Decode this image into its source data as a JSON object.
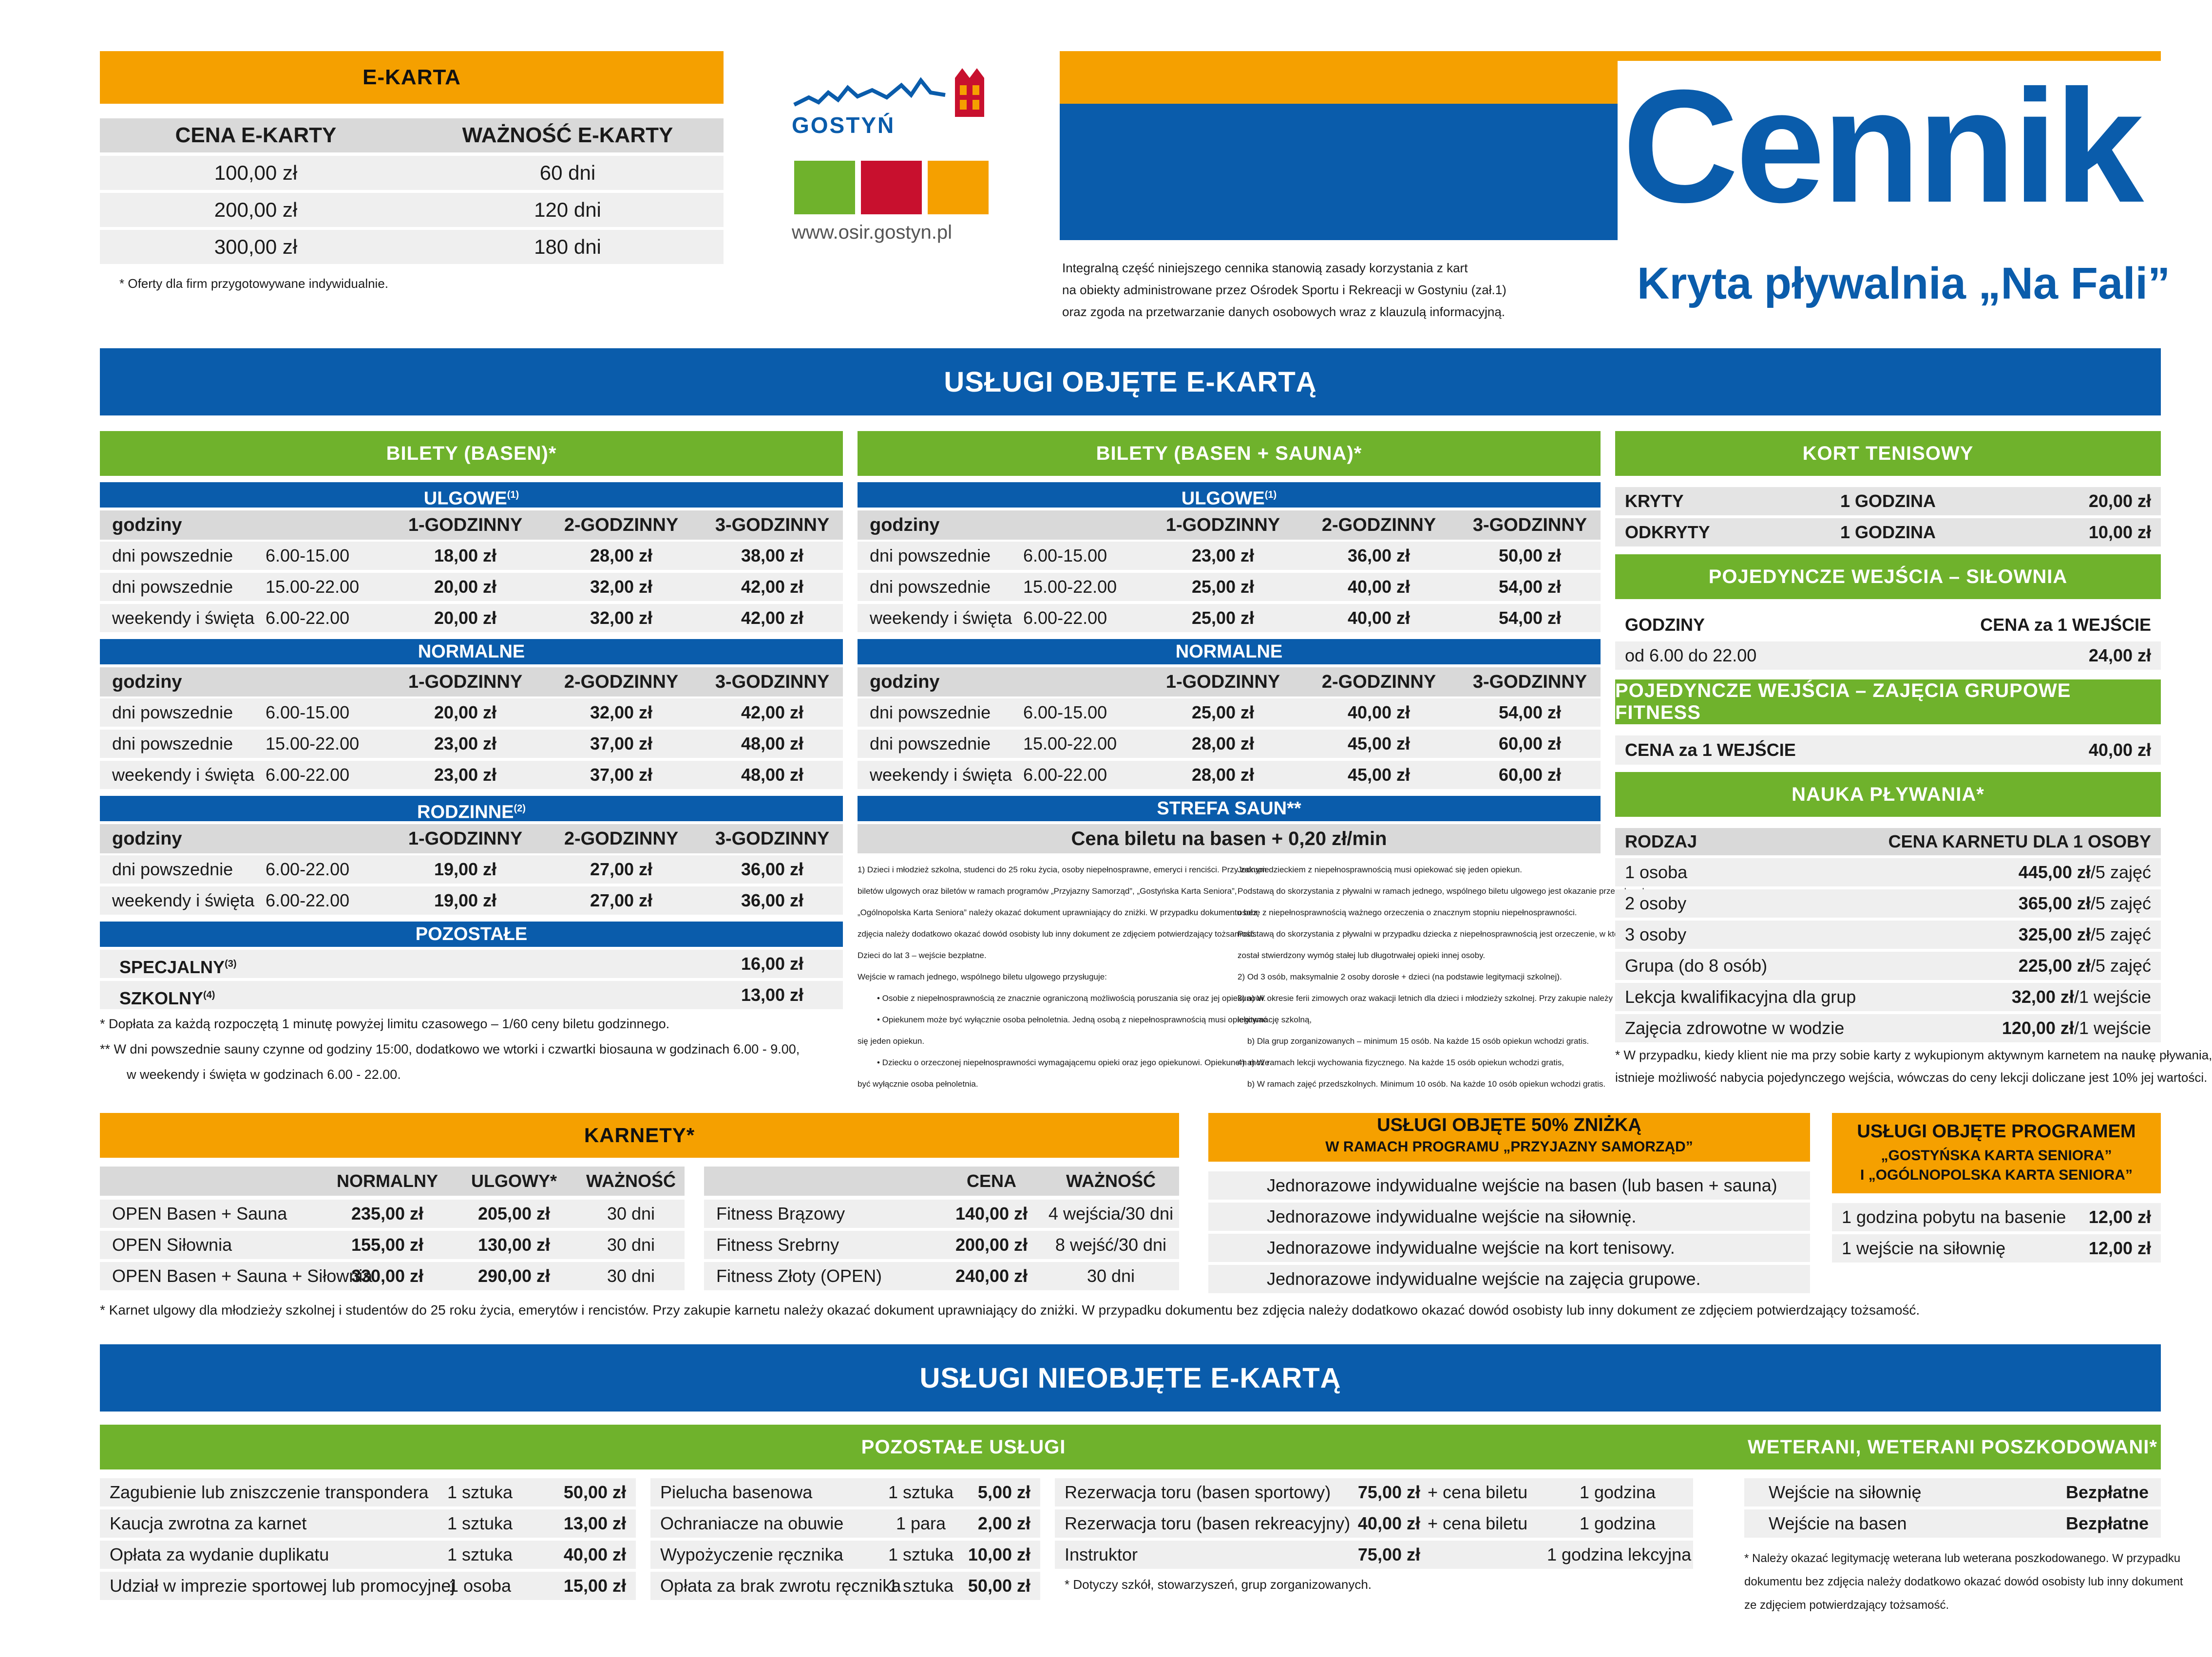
{
  "ekarta": {
    "title": "E-KARTA",
    "col1": "CENA E-KARTY",
    "col2": "WAŻNOŚĆ E-KARTY",
    "rows": [
      [
        "100,00 zł",
        "60 dni"
      ],
      [
        "200,00 zł",
        "120 dni"
      ],
      [
        "300,00 zł",
        "180 dni"
      ]
    ],
    "note": "* Oferty dla firm przygotowywane indywidualnie."
  },
  "logo": {
    "name": "GOSTYŃ",
    "url": "www.osir.gostyn.pl"
  },
  "title": {
    "main": "Cennik",
    "sub": "Kryta pływalnia „Na Fali”",
    "intro1": "Integralną część niniejszego cennika stanowią zasady korzystania z kart",
    "intro2": "na obiekty administrowane przez Ośrodek Sportu i Rekreacji w Gostyniu (zał.1)",
    "intro3": "oraz zgoda na przetwarzanie danych osobowych wraz z klauzulą informacyjną."
  },
  "sec1": "USŁUGI OBJĘTE E-KARTĄ",
  "sec2": "USŁUGI NIEOBJĘTE E-KARTĄ",
  "basen": {
    "title": "BILETY (BASEN)*",
    "ulgowe": {
      "label": "ULGOWE",
      "sup": "(1)",
      "rows": [
        [
          "dni powszednie",
          "6.00-15.00",
          "18,00 zł",
          "28,00 zł",
          "38,00 zł"
        ],
        [
          "dni powszednie",
          "15.00-22.00",
          "20,00 zł",
          "32,00 zł",
          "42,00 zł"
        ],
        [
          "weekendy i święta",
          "6.00-22.00",
          "20,00 zł",
          "32,00 zł",
          "42,00 zł"
        ]
      ]
    },
    "normalne": {
      "label": "NORMALNE",
      "rows": [
        [
          "dni powszednie",
          "6.00-15.00",
          "20,00 zł",
          "32,00 zł",
          "42,00 zł"
        ],
        [
          "dni powszednie",
          "15.00-22.00",
          "23,00 zł",
          "37,00 zł",
          "48,00 zł"
        ],
        [
          "weekendy i święta",
          "6.00-22.00",
          "23,00 zł",
          "37,00 zł",
          "48,00 zł"
        ]
      ]
    },
    "rodzinne": {
      "label": "RODZINNE",
      "sup": "(2)",
      "rows": [
        [
          "dni powszednie",
          "6.00-22.00",
          "19,00 zł",
          "27,00 zł",
          "36,00 zł"
        ],
        [
          "weekendy i święta",
          "6.00-22.00",
          "19,00 zł",
          "27,00 zł",
          "36,00 zł"
        ]
      ]
    },
    "pozostale": {
      "label": "POZOSTAŁE",
      "rows": [
        [
          "SPECJALNY",
          "(3)",
          "16,00 zł"
        ],
        [
          "SZKOLNY",
          "(4)",
          "13,00 zł"
        ]
      ]
    },
    "notes": [
      "* Dopłata za każdą rozpoczętą 1 minutę powyżej limitu czasowego – 1/60 ceny biletu godzinnego.",
      "** W dni powszednie sauny czynne od godziny 15:00, dodatkowo we wtorki i czwartki biosauna w godzinach 6.00 - 9.00,",
      "w weekendy i święta w godzinach 6.00 - 22.00."
    ]
  },
  "cols": {
    "godziny": "godziny",
    "h1": "1-GODZINNY",
    "h2": "2-GODZINNY",
    "h3": "3-GODZINNY"
  },
  "sauna": {
    "title": "BILETY (BASEN + SAUNA)*",
    "ulgowe": {
      "label": "ULGOWE",
      "sup": "(1)",
      "rows": [
        [
          "dni powszednie",
          "6.00-15.00",
          "23,00 zł",
          "36,00 zł",
          "50,00 zł"
        ],
        [
          "dni powszednie",
          "15.00-22.00",
          "25,00 zł",
          "40,00 zł",
          "54,00 zł"
        ],
        [
          "weekendy i święta",
          "6.00-22.00",
          "25,00 zł",
          "40,00 zł",
          "54,00 zł"
        ]
      ]
    },
    "normalne": {
      "label": "NORMALNE",
      "rows": [
        [
          "dni powszednie",
          "6.00-15.00",
          "25,00 zł",
          "40,00 zł",
          "54,00 zł"
        ],
        [
          "dni powszednie",
          "15.00-22.00",
          "28,00 zł",
          "45,00 zł",
          "60,00 zł"
        ],
        [
          "weekendy i święta",
          "6.00-22.00",
          "28,00 zł",
          "45,00 zł",
          "60,00 zł"
        ]
      ]
    },
    "strefa": "STREFA SAUN**",
    "strefa_price": "Cena biletu na basen + 0,20 zł/min",
    "fn_left": [
      "1) Dzieci i młodzież szkolna, studenci do 25 roku życia, osoby niepełnosprawne, emeryci i renciści. Przy zakupie",
      "biletów ulgowych oraz biletów w ramach programów „Przyjazny Samorząd”, „Gostyńska Karta Seniora”,",
      "„Ogólnopolska Karta Seniora” należy okazać dokument uprawniający do zniżki. W przypadku dokumentu bez",
      "zdjęcia należy dodatkowo okazać dowód osobisty lub inny dokument ze zdjęciem potwierdzający tożsamość.",
      "Dzieci do lat 3 – wejście bezpłatne.",
      "Wejście w ramach jednego, wspólnego biletu ulgowego przysługuje:",
      "• Osobie z niepełnosprawnością ze znacznie ograniczoną możliwością poruszania się oraz jej opiekunowi.",
      "• Opiekunem może być wyłącznie osoba pełnoletnia. Jedną osobą z niepełnosprawnością musi opiekować",
      "się jeden opiekun.",
      "• Dziecku o orzeczonej niepełnosprawności wymagającemu opieki oraz jego opiekunowi. Opiekunem może",
      "być wyłącznie osoba pełnoletnia."
    ],
    "fn_right": [
      "Jednym dzieckiem z niepełnosprawnością musi opiekować się jeden opiekun.",
      "Podstawą do skorzystania z pływalni w ramach jednego, wspólnego biletu ulgowego jest okazanie przez dorosłą",
      "osobę z niepełnosprawnością ważnego orzeczenia o znacznym stopniu niepełnosprawności.",
      "Podstawą do skorzystania z pływalni w przypadku dziecka z niepełnosprawnością jest orzeczenie, w którym",
      "został stwierdzony wymóg stałej lub długotrwałej opieki innej osoby.",
      "2) Od 3 osób, maksymalnie 2 osoby dorosłe + dzieci (na podstawie legitymacji szkolnej).",
      "3) a) W okresie ferii zimowych oraz wakacji letnich dla dzieci i młodzieży szkolnej. Przy zakupie należy okazać",
      "legitymację szkolną,",
      "b) Dla grup zorganizowanych – minimum 15 osób. Na każde 15 osób opiekun wchodzi gratis.",
      "4) a) W ramach lekcji wychowania fizycznego. Na każde 15 osób opiekun wchodzi gratis,",
      "b) W ramach zajęć przedszkolnych. Minimum 10 osób. Na każde 10 osób opiekun wchodzi gratis."
    ]
  },
  "kort": {
    "title": "KORT TENISOWY",
    "rows": [
      [
        "KRYTY",
        "1 GODZINA",
        "20,00 zł"
      ],
      [
        "ODKRYTY",
        "1 GODZINA",
        "10,00 zł"
      ]
    ]
  },
  "silownia": {
    "title": "POJEDYNCZE WEJŚCIA – SIŁOWNIA",
    "col1": "GODZINY",
    "col2": "CENA za 1 WEJŚCIE",
    "row": [
      "od 6.00 do 22.00",
      "24,00 zł"
    ]
  },
  "fitness": {
    "title": "POJEDYNCZE WEJŚCIA – ZAJĘCIA GRUPOWE FITNESS",
    "col1": "CENA za 1 WEJŚCIE",
    "price": "40,00 zł"
  },
  "nauka": {
    "title": "NAUKA PŁYWANIA*",
    "col1": "RODZAJ",
    "col2": "CENA KARNETU DLA 1 OSOBY",
    "rows": [
      [
        "1 osoba",
        "445,00 zł",
        "/5 zajęć"
      ],
      [
        "2 osoby",
        "365,00 zł",
        "/5 zajęć"
      ],
      [
        "3 osoby",
        "325,00 zł",
        "/5 zajęć"
      ],
      [
        "Grupa (do 8 osób)",
        "225,00 zł",
        "/5 zajęć"
      ],
      [
        "Lekcja kwalifikacyjna dla grup",
        "32,00 zł",
        "/1 wejście"
      ],
      [
        "Zajęcia zdrowotne w wodzie",
        "120,00 zł",
        "/1 wejście"
      ]
    ],
    "note1": "* W przypadku, kiedy klient nie ma przy sobie karty z wykupionym aktywnym karnetem na naukę pływania,",
    "note2": "istnieje możliwość nabycia pojedynczego wejścia, wówczas do ceny lekcji doliczane jest 10% jej wartości."
  },
  "karnety": {
    "title": "KARNETY*",
    "c1": "NORMALNY",
    "c2": "ULGOWY*",
    "c3": "WAŻNOŚĆ",
    "rows": [
      [
        "OPEN Basen + Sauna",
        "235,00 zł",
        "205,00 zł",
        "30 dni"
      ],
      [
        "OPEN Siłownia",
        "155,00 zł",
        "130,00 zł",
        "30 dni"
      ],
      [
        "OPEN Basen + Sauna + Siłownia",
        "330,00 zł",
        "290,00 zł",
        "30 dni"
      ]
    ],
    "f1": "CENA",
    "f2": "WAŻNOŚĆ",
    "frows": [
      [
        "Fitness Brązowy",
        "140,00 zł",
        "4 wejścia/30 dni"
      ],
      [
        "Fitness Srebrny",
        "200,00 zł",
        "8 wejść/30 dni"
      ],
      [
        "Fitness Złoty (OPEN)",
        "240,00 zł",
        "30 dni"
      ]
    ],
    "note": "* Karnet ulgowy dla młodzieży szkolnej i studentów do 25 roku życia, emerytów i rencistów. Przy zakupie karnetu należy okazać dokument uprawniający do zniżki. W przypadku dokumentu bez zdjęcia należy dodatkowo okazać dowód osobisty lub inny dokument ze zdjęciem potwierdzający tożsamość."
  },
  "znizka": {
    "title1": "USŁUGI OBJĘTE 50% ZNIŻKĄ",
    "title2": "W RAMACH PROGRAMU „PRZYJAZNY SAMORZĄD”",
    "rows": [
      "Jednorazowe indywidualne wejście na basen (lub basen + sauna)",
      "Jednorazowe indywidualne wejście na siłownię.",
      "Jednorazowe indywidualne wejście na kort tenisowy.",
      "Jednorazowe indywidualne wejście na zajęcia grupowe."
    ]
  },
  "senior": {
    "title1": "USŁUGI OBJĘTE PROGRAMEM",
    "title2": "„GOSTYŃSKA KARTA SENIORA”",
    "title3": "I „OGÓLNOPOLSKA KARTA SENIORA”",
    "rows": [
      [
        "1 godzina pobytu na basenie",
        "12,00 zł"
      ],
      [
        "1 wejście na siłownię",
        "12,00 zł"
      ]
    ]
  },
  "pozostale": {
    "title": "POZOSTAŁE USŁUGI",
    "a": [
      [
        "Zagubienie lub zniszczenie transpondera",
        "1 sztuka",
        "50,00 zł"
      ],
      [
        "Kaucja zwrotna za karnet",
        "1 sztuka",
        "13,00 zł"
      ],
      [
        "Opłata za wydanie duplikatu",
        "1 sztuka",
        "40,00 zł"
      ],
      [
        "Udział w imprezie sportowej lub promocyjnej",
        "1 osoba",
        "15,00 zł"
      ]
    ],
    "b": [
      [
        "Pielucha basenowa",
        "1 sztuka",
        "5,00 zł"
      ],
      [
        "Ochraniacze na obuwie",
        "1 para",
        "2,00 zł"
      ],
      [
        "Wypożyczenie ręcznika",
        "1 sztuka",
        "10,00 zł"
      ],
      [
        "Opłata za brak zwrotu ręcznika",
        "1 sztuka",
        "50,00 zł"
      ]
    ],
    "c": [
      [
        "Rezerwacja toru (basen sportowy)",
        "75,00 zł",
        "+ cena biletu",
        "1 godzina"
      ],
      [
        "Rezerwacja toru (basen rekreacyjny)",
        "40,00 zł",
        "+ cena biletu",
        "1 godzina"
      ],
      [
        "Instruktor",
        "75,00 zł",
        "",
        "1 godzina lekcyjna"
      ]
    ],
    "note": "* Dotyczy szkół, stowarzyszeń, grup zorganizowanych."
  },
  "weterani": {
    "title": "WETERANI, WETERANI POSZKODOWANI*",
    "rows": [
      [
        "Wejście na siłownię",
        "Bezpłatne"
      ],
      [
        "Wejście na basen",
        "Bezpłatne"
      ]
    ],
    "n1": "* Należy okazać legitymację weterana lub weterana poszkodowanego. W przypadku",
    "n2": "dokumentu bez zdjęcia należy dodatkowo okazać dowód osobisty lub inny dokument",
    "n3": "ze zdjęciem potwierdzający tożsamość."
  },
  "colors": {
    "orange": "#f5a000",
    "blue": "#0a5cab",
    "green": "#6fb22c",
    "grey": "#d9d9d9"
  }
}
